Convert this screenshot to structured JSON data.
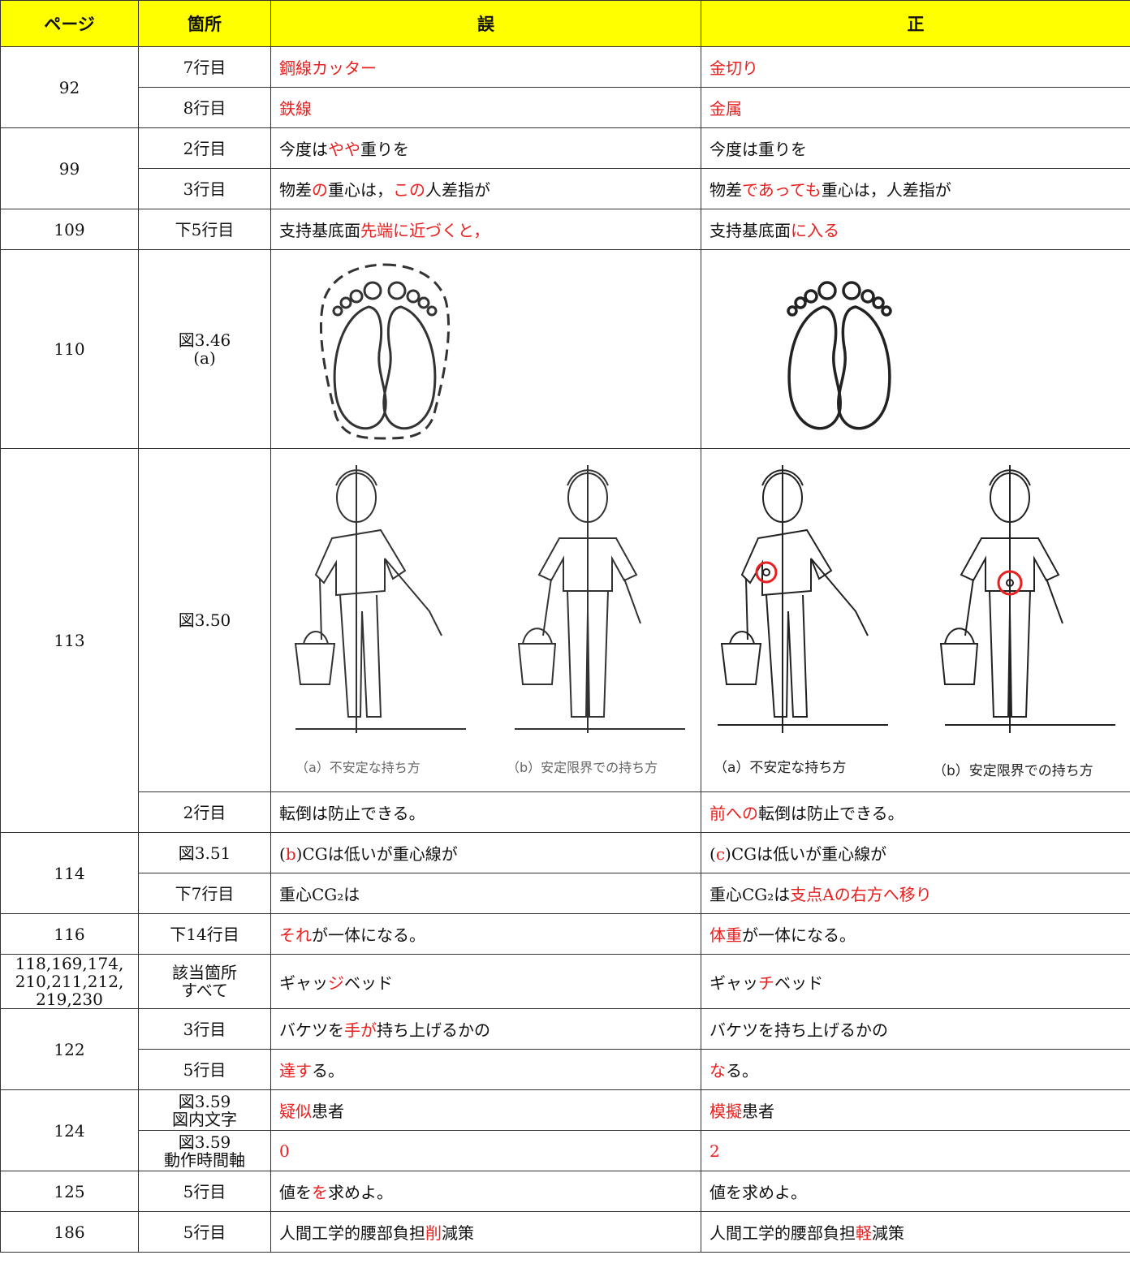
{
  "table": {
    "header": [
      "ページ",
      "箇所",
      "誤",
      "正"
    ],
    "rows": [
      {
        "page": "92",
        "entries": [
          {
            "location": "7行目",
            "wrong": [
              {
                "text": "鋼線カッター",
                "color": "#e8201f"
              }
            ],
            "correct": [
              {
                "text": "金切り",
                "color": "#e8201f"
              }
            ]
          },
          {
            "location": "8行目",
            "wrong": [
              {
                "text": "鉄線",
                "color": "#e8201f"
              }
            ],
            "correct": [
              {
                "text": "金属",
                "color": "#e8201f"
              }
            ]
          }
        ]
      },
      {
        "page": "99",
        "entries": [
          {
            "location": "2行目",
            "wrong": [
              "今度は",
              {
                "text": "やや",
                "color": "#e8201f"
              },
              "重りを"
            ],
            "correct": [
              "今度は重りを"
            ]
          },
          {
            "location": "3行目",
            "wrong": [
              "物差",
              {
                "text": "の",
                "color": "#e8201f"
              },
              "重心は，",
              {
                "text": "この",
                "color": "#e8201f"
              },
              "人差指が"
            ],
            "correct": [
              "物差",
              {
                "text": "であっても",
                "color": "#e8201f"
              },
              "重心は，人差指が"
            ]
          }
        ]
      },
      {
        "page": "109",
        "entries": [
          {
            "location": "下5行目",
            "wrong": [
              "支持基底面",
              {
                "text": "先端に近づくと，",
                "color": "#e8201f"
              }
            ],
            "correct": [
              "支持基底面",
              {
                "text": "に入る",
                "color": "#e8201f"
              }
            ]
          }
        ]
      },
      {
        "page": "110",
        "entries": [
          {
            "location": "図3.46\n(a)"
          }
        ]
      },
      {
        "page": "113",
        "entries": [
          {
            "location": "図3.50",
            "wrong_captions": [
              "（a）不安定な持ち方",
              "（b）安定限界での持ち方"
            ],
            "correct_captions": [
              "（a）不安定な持ち方",
              "（b）安定限界での持ち方"
            ]
          },
          {
            "location": "2行目",
            "wrong": [
              "転倒は防止できる。"
            ],
            "correct": [
              {
                "text": "前への",
                "color": "#e8201f"
              },
              "転倒は防止できる。"
            ]
          }
        ]
      },
      {
        "page": "114",
        "entries": [
          {
            "location": "図3.51",
            "wrong": [
              "(",
              {
                "text": "b",
                "color": "#e8201f"
              },
              ")CGは低いが重心線が"
            ],
            "correct": [
              "(",
              {
                "text": "c",
                "color": "#e8201f"
              },
              ")CGは低いが重心線が"
            ]
          },
          {
            "location": "下7行目",
            "wrong": [
              "重心CG₂は"
            ],
            "correct": [
              "重心CG₂は",
              {
                "text": "支点Aの右方へ移り",
                "color": "#e8201f"
              }
            ]
          }
        ]
      },
      {
        "page": "116",
        "entries": [
          {
            "location": "下14行目",
            "wrong": [
              {
                "text": "それ",
                "color": "#e8201f"
              },
              "が一体になる。"
            ],
            "correct": [
              {
                "text": "体重",
                "color": "#e8201f"
              },
              "が一体になる。"
            ]
          }
        ]
      },
      {
        "page": "118,169,174,\n210,211,212,\n219,230",
        "entries": [
          {
            "location": "該当箇所\nすべて",
            "wrong": [
              "ギャッ",
              {
                "text": "ジ",
                "color": "#e8201f"
              },
              "ベッド"
            ],
            "correct": [
              "ギャッ",
              {
                "text": "チ",
                "color": "#e8201f"
              },
              "ベッド"
            ]
          }
        ]
      },
      {
        "page": "122",
        "entries": [
          {
            "location": "3行目",
            "wrong": [
              "バケツを",
              {
                "text": "手が",
                "color": "#e8201f"
              },
              "持ち上げるかの"
            ],
            "correct": [
              "バケツを持ち上げるかの"
            ]
          },
          {
            "location": "5行目",
            "wrong": [
              {
                "text": "達す",
                "color": "#e8201f"
              },
              "る。"
            ],
            "correct": [
              {
                "text": "な",
                "color": "#e8201f"
              },
              "る。"
            ]
          }
        ]
      },
      {
        "page": "124",
        "entries": [
          {
            "location": "図3.59\n図内文字",
            "wrong": [
              {
                "text": "疑似",
                "color": "#e8201f"
              },
              "患者"
            ],
            "correct": [
              {
                "text": "模擬",
                "color": "#e8201f"
              },
              "患者"
            ]
          },
          {
            "location": "図3.59\n動作時間軸",
            "wrong": [
              {
                "text": "0",
                "color": "#e8201f"
              }
            ],
            "correct": [
              {
                "text": "2",
                "color": "#e8201f"
              }
            ]
          }
        ]
      },
      {
        "page": "125",
        "entries": [
          {
            "location": "5行目",
            "wrong": [
              "値を",
              {
                "text": "を",
                "color": "#e8201f"
              },
              "求めよ。"
            ],
            "correct": [
              "値を求めよ。"
            ]
          }
        ]
      },
      {
        "page": "186",
        "entries": [
          {
            "location": "5行目",
            "wrong": [
              "人間工学的腰部負担",
              {
                "text": "削",
                "color": "#e8201f"
              },
              "減策"
            ],
            "correct": [
              "人間工学的腰部負担",
              {
                "text": "軽",
                "color": "#e8201f"
              },
              "減策"
            ]
          }
        ]
      }
    ]
  }
}
